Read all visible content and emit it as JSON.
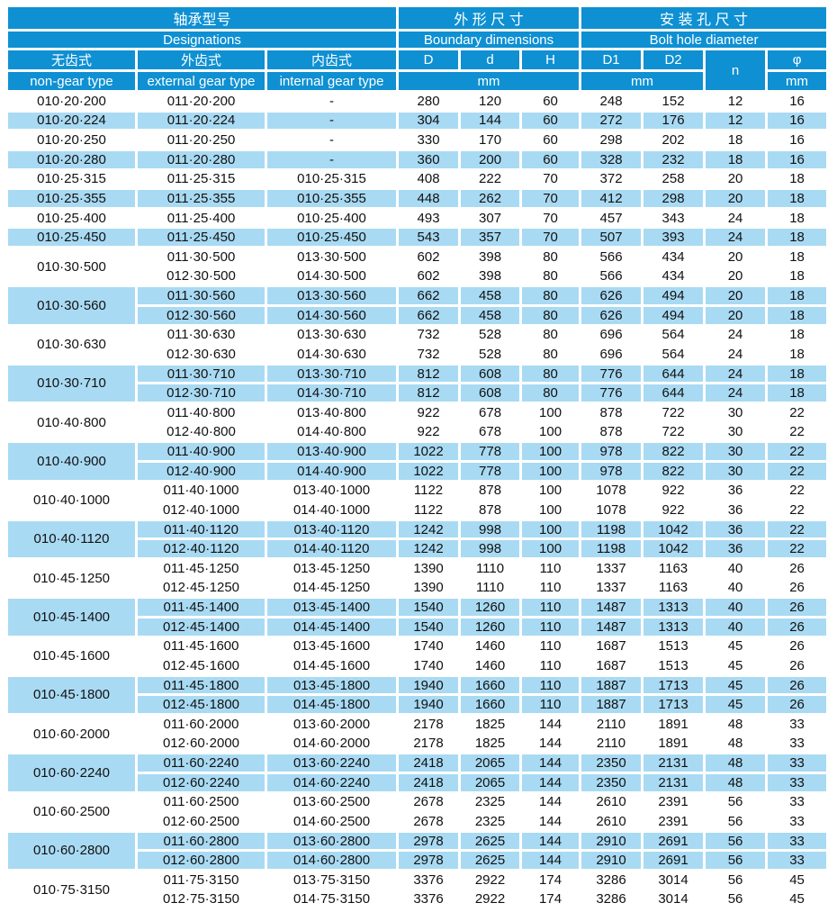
{
  "page": {
    "colors": {
      "header_blue": "#0e90d3",
      "row_blue": "#a9daf3",
      "row_white": "#ffffff",
      "text_dark": "#111111",
      "text_light": "#ffffff"
    },
    "header": {
      "designations": {
        "zh": "轴承型号",
        "en": "Designations"
      },
      "boundary": {
        "zh": "外 形 尺 寸",
        "en": "Boundary dimensions"
      },
      "bolt": {
        "zh": "安 装 孔 尺 寸",
        "en": "Bolt hole diameter"
      },
      "columns": {
        "non_gear": {
          "zh": "无齿式",
          "en": "non-gear type"
        },
        "external_gear": {
          "zh": "外齿式",
          "en": "external gear type"
        },
        "internal_gear": {
          "zh": "内齿式",
          "en": "internal gear type"
        },
        "D": "D",
        "d": "d",
        "H": "H",
        "D1": "D1",
        "D2": "D2",
        "n": "n",
        "phi": "φ"
      },
      "units": {
        "boundary": "mm",
        "bolt": "mm",
        "phi": "mm"
      }
    },
    "groups": [
      {
        "shaded": false,
        "non_gear": "010·20·200",
        "sub": [
          {
            "external": "011·20·200",
            "internal": "-",
            "values": [
              "280",
              "120",
              "60",
              "248",
              "152",
              "12",
              "16"
            ]
          }
        ]
      },
      {
        "shaded": true,
        "non_gear": "010·20·224",
        "sub": [
          {
            "external": "011·20·224",
            "internal": "-",
            "values": [
              "304",
              "144",
              "60",
              "272",
              "176",
              "12",
              "16"
            ]
          }
        ]
      },
      {
        "shaded": false,
        "non_gear": "010·20·250",
        "sub": [
          {
            "external": "011·20·250",
            "internal": "-",
            "values": [
              "330",
              "170",
              "60",
              "298",
              "202",
              "18",
              "16"
            ]
          }
        ]
      },
      {
        "shaded": true,
        "non_gear": "010·20·280",
        "sub": [
          {
            "external": "011·20·280",
            "internal": "-",
            "values": [
              "360",
              "200",
              "60",
              "328",
              "232",
              "18",
              "16"
            ]
          }
        ]
      },
      {
        "shaded": false,
        "non_gear": "010·25·315",
        "sub": [
          {
            "external": "011·25·315",
            "internal": "010·25·315",
            "values": [
              "408",
              "222",
              "70",
              "372",
              "258",
              "20",
              "18"
            ]
          }
        ]
      },
      {
        "shaded": true,
        "non_gear": "010·25·355",
        "sub": [
          {
            "external": "011·25·355",
            "internal": "010·25·355",
            "values": [
              "448",
              "262",
              "70",
              "412",
              "298",
              "20",
              "18"
            ]
          }
        ]
      },
      {
        "shaded": false,
        "non_gear": "010·25·400",
        "sub": [
          {
            "external": "011·25·400",
            "internal": "010·25·400",
            "values": [
              "493",
              "307",
              "70",
              "457",
              "343",
              "24",
              "18"
            ]
          }
        ]
      },
      {
        "shaded": true,
        "non_gear": "010·25·450",
        "sub": [
          {
            "external": "011·25·450",
            "internal": "010·25·450",
            "values": [
              "543",
              "357",
              "70",
              "507",
              "393",
              "24",
              "18"
            ]
          }
        ]
      },
      {
        "shaded": false,
        "non_gear": "010·30·500",
        "sub": [
          {
            "external": "011·30·500",
            "internal": "013·30·500",
            "values": [
              "602",
              "398",
              "80",
              "566",
              "434",
              "20",
              "18"
            ]
          },
          {
            "external": "012·30·500",
            "internal": "014·30·500",
            "values": [
              "602",
              "398",
              "80",
              "566",
              "434",
              "20",
              "18"
            ]
          }
        ]
      },
      {
        "shaded": true,
        "non_gear": "010·30·560",
        "sub": [
          {
            "external": "011·30·560",
            "internal": "013·30·560",
            "values": [
              "662",
              "458",
              "80",
              "626",
              "494",
              "20",
              "18"
            ]
          },
          {
            "external": "012·30·560",
            "internal": "014·30·560",
            "values": [
              "662",
              "458",
              "80",
              "626",
              "494",
              "20",
              "18"
            ]
          }
        ]
      },
      {
        "shaded": false,
        "non_gear": "010·30·630",
        "sub": [
          {
            "external": "011·30·630",
            "internal": "013·30·630",
            "values": [
              "732",
              "528",
              "80",
              "696",
              "564",
              "24",
              "18"
            ]
          },
          {
            "external": "012·30·630",
            "internal": "014·30·630",
            "values": [
              "732",
              "528",
              "80",
              "696",
              "564",
              "24",
              "18"
            ]
          }
        ]
      },
      {
        "shaded": true,
        "non_gear": "010·30·710",
        "sub": [
          {
            "external": "011·30·710",
            "internal": "013·30·710",
            "values": [
              "812",
              "608",
              "80",
              "776",
              "644",
              "24",
              "18"
            ]
          },
          {
            "external": "012·30·710",
            "internal": "014·30·710",
            "values": [
              "812",
              "608",
              "80",
              "776",
              "644",
              "24",
              "18"
            ]
          }
        ]
      },
      {
        "shaded": false,
        "non_gear": "010·40·800",
        "sub": [
          {
            "external": "011·40·800",
            "internal": "013·40·800",
            "values": [
              "922",
              "678",
              "100",
              "878",
              "722",
              "30",
              "22"
            ]
          },
          {
            "external": "012·40·800",
            "internal": "014·40·800",
            "values": [
              "922",
              "678",
              "100",
              "878",
              "722",
              "30",
              "22"
            ]
          }
        ]
      },
      {
        "shaded": true,
        "non_gear": "010·40·900",
        "sub": [
          {
            "external": "011·40·900",
            "internal": "013·40·900",
            "values": [
              "1022",
              "778",
              "100",
              "978",
              "822",
              "30",
              "22"
            ]
          },
          {
            "external": "012·40·900",
            "internal": "014·40·900",
            "values": [
              "1022",
              "778",
              "100",
              "978",
              "822",
              "30",
              "22"
            ]
          }
        ]
      },
      {
        "shaded": false,
        "non_gear": "010·40·1000",
        "sub": [
          {
            "external": "011·40·1000",
            "internal": "013·40·1000",
            "values": [
              "1122",
              "878",
              "100",
              "1078",
              "922",
              "36",
              "22"
            ]
          },
          {
            "external": "012·40·1000",
            "internal": "014·40·1000",
            "values": [
              "1122",
              "878",
              "100",
              "1078",
              "922",
              "36",
              "22"
            ]
          }
        ]
      },
      {
        "shaded": true,
        "non_gear": "010·40·1120",
        "sub": [
          {
            "external": "011·40·1120",
            "internal": "013·40·1120",
            "values": [
              "1242",
              "998",
              "100",
              "1198",
              "1042",
              "36",
              "22"
            ]
          },
          {
            "external": "012·40·1120",
            "internal": "014·40·1120",
            "values": [
              "1242",
              "998",
              "100",
              "1198",
              "1042",
              "36",
              "22"
            ]
          }
        ]
      },
      {
        "shaded": false,
        "non_gear": "010·45·1250",
        "sub": [
          {
            "external": "011·45·1250",
            "internal": "013·45·1250",
            "values": [
              "1390",
              "1110",
              "110",
              "1337",
              "1163",
              "40",
              "26"
            ]
          },
          {
            "external": "012·45·1250",
            "internal": "014·45·1250",
            "values": [
              "1390",
              "1110",
              "110",
              "1337",
              "1163",
              "40",
              "26"
            ]
          }
        ]
      },
      {
        "shaded": true,
        "non_gear": "010·45·1400",
        "sub": [
          {
            "external": "011·45·1400",
            "internal": "013·45·1400",
            "values": [
              "1540",
              "1260",
              "110",
              "1487",
              "1313",
              "40",
              "26"
            ]
          },
          {
            "external": "012·45·1400",
            "internal": "014·45·1400",
            "values": [
              "1540",
              "1260",
              "110",
              "1487",
              "1313",
              "40",
              "26"
            ]
          }
        ]
      },
      {
        "shaded": false,
        "non_gear": "010·45·1600",
        "sub": [
          {
            "external": "011·45·1600",
            "internal": "013·45·1600",
            "values": [
              "1740",
              "1460",
              "110",
              "1687",
              "1513",
              "45",
              "26"
            ]
          },
          {
            "external": "012·45·1600",
            "internal": "014·45·1600",
            "values": [
              "1740",
              "1460",
              "110",
              "1687",
              "1513",
              "45",
              "26"
            ]
          }
        ]
      },
      {
        "shaded": true,
        "non_gear": "010·45·1800",
        "sub": [
          {
            "external": "011·45·1800",
            "internal": "013·45·1800",
            "values": [
              "1940",
              "1660",
              "110",
              "1887",
              "1713",
              "45",
              "26"
            ]
          },
          {
            "external": "012·45·1800",
            "internal": "014·45·1800",
            "values": [
              "1940",
              "1660",
              "110",
              "1887",
              "1713",
              "45",
              "26"
            ]
          }
        ]
      },
      {
        "shaded": false,
        "non_gear": "010·60·2000",
        "sub": [
          {
            "external": "011·60·2000",
            "internal": "013·60·2000",
            "values": [
              "2178",
              "1825",
              "144",
              "2110",
              "1891",
              "48",
              "33"
            ]
          },
          {
            "external": "012·60·2000",
            "internal": "014·60·2000",
            "values": [
              "2178",
              "1825",
              "144",
              "2110",
              "1891",
              "48",
              "33"
            ]
          }
        ]
      },
      {
        "shaded": true,
        "non_gear": "010·60·2240",
        "sub": [
          {
            "external": "011·60·2240",
            "internal": "013·60·2240",
            "values": [
              "2418",
              "2065",
              "144",
              "2350",
              "2131",
              "48",
              "33"
            ]
          },
          {
            "external": "012·60·2240",
            "internal": "014·60·2240",
            "values": [
              "2418",
              "2065",
              "144",
              "2350",
              "2131",
              "48",
              "33"
            ]
          }
        ]
      },
      {
        "shaded": false,
        "non_gear": "010·60·2500",
        "sub": [
          {
            "external": "011·60·2500",
            "internal": "013·60·2500",
            "values": [
              "2678",
              "2325",
              "144",
              "2610",
              "2391",
              "56",
              "33"
            ]
          },
          {
            "external": "012·60·2500",
            "internal": "014·60·2500",
            "values": [
              "2678",
              "2325",
              "144",
              "2610",
              "2391",
              "56",
              "33"
            ]
          }
        ]
      },
      {
        "shaded": true,
        "non_gear": "010·60·2800",
        "sub": [
          {
            "external": "011·60·2800",
            "internal": "013·60·2800",
            "values": [
              "2978",
              "2625",
              "144",
              "2910",
              "2691",
              "56",
              "33"
            ]
          },
          {
            "external": "012·60·2800",
            "internal": "014·60·2800",
            "values": [
              "2978",
              "2625",
              "144",
              "2910",
              "2691",
              "56",
              "33"
            ]
          }
        ]
      },
      {
        "shaded": false,
        "non_gear": "010·75·3150",
        "sub": [
          {
            "external": "011·75·3150",
            "internal": "013·75·3150",
            "values": [
              "3376",
              "2922",
              "174",
              "3286",
              "3014",
              "56",
              "45"
            ]
          },
          {
            "external": "012·75·3150",
            "internal": "014·75·3150",
            "values": [
              "3376",
              "2922",
              "174",
              "3286",
              "3014",
              "56",
              "45"
            ]
          }
        ]
      }
    ]
  }
}
